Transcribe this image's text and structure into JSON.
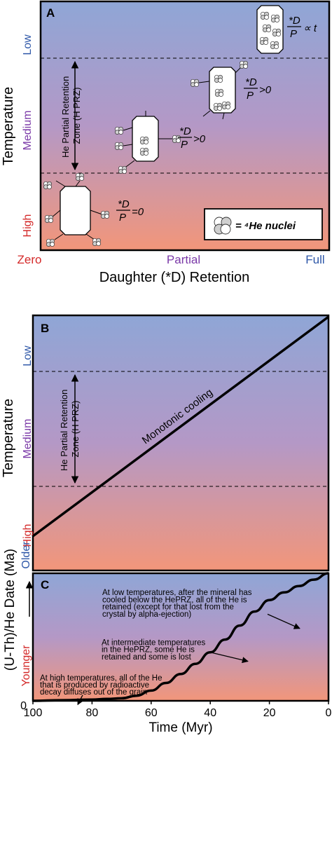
{
  "panel_a": {
    "letter": "A",
    "y_label": "Temperature",
    "y_low": "Low",
    "y_medium": "Medium",
    "y_high": "High",
    "x_label": "Daughter (*D) Retention",
    "x_zero": "Zero",
    "x_partial": "Partial",
    "x_full": "Full",
    "zone_line1": "He Partial Retention",
    "zone_line2": "Zone (H PRZ)",
    "eq_high": {
      "num": "*D",
      "den": "P",
      "rel": "=0"
    },
    "eq_mid1": {
      "num": "*D",
      "den": "P",
      "rel": ">0"
    },
    "eq_mid2": {
      "num": "*D",
      "den": "P",
      "rel": ">0"
    },
    "eq_low": {
      "num": "*D",
      "den": "P",
      "rel": "∝ t"
    },
    "legend_text": "= ⁴He nuclei"
  },
  "panel_b": {
    "letter": "B",
    "y_label": "Temperature",
    "y_low": "Low",
    "y_medium": "Medium",
    "y_high": "High",
    "zone_line1": "He Partial Retention",
    "zone_line2": "Zone (H PRZ)",
    "line_label": "Monotonic cooling"
  },
  "panel_c": {
    "letter": "C",
    "y_label": "(U-Th)/He Date (Ma)",
    "y_older": "Older",
    "y_younger": "Younger",
    "x_label": "Time (Myr)",
    "y_zero": "0",
    "x_ticks": [
      "100",
      "80",
      "60",
      "40",
      "20",
      "0"
    ],
    "annotation_low": [
      "At low temperatures, after the mineral has",
      "cooled below the HePRZ, all of the He is",
      "retained (except for that lost from the",
      "crystal by alpha-ejection)"
    ],
    "annotation_mid": [
      "At intermediate temperatures",
      "in the HePRZ, some He is",
      "retained and some is lost"
    ],
    "annotation_high": [
      "At high temperatures, all of the He",
      "that is produced by radioactive",
      "decay diffuses out of the grain"
    ]
  },
  "colors": {
    "low_blue": "#2e57a8",
    "medium_purple": "#7b3aa8",
    "high_red": "#d42a2a",
    "grad_top": "#8fa6d6",
    "grad_mid": "#b498c6",
    "grad_bottom": "#f2967a"
  },
  "chart_data": {
    "type": "line",
    "title": "",
    "xlabel": "Time (Myr)",
    "ylabel": "(U-Th)/He Date (Ma)",
    "x": [
      100,
      90,
      80,
      75,
      70,
      65,
      60,
      55,
      50,
      45,
      40,
      35,
      30,
      25,
      20,
      15,
      10,
      5,
      0
    ],
    "series": [
      {
        "values": [
          0,
          0.5,
          1,
          1.5,
          2,
          4,
          8,
          14,
          21,
          29,
          38,
          48,
          59,
          70,
          79,
          85,
          90,
          95,
          100
        ]
      }
    ],
    "xlim": [
      100,
      0
    ],
    "ylim": [
      0,
      100
    ],
    "grid": false
  }
}
